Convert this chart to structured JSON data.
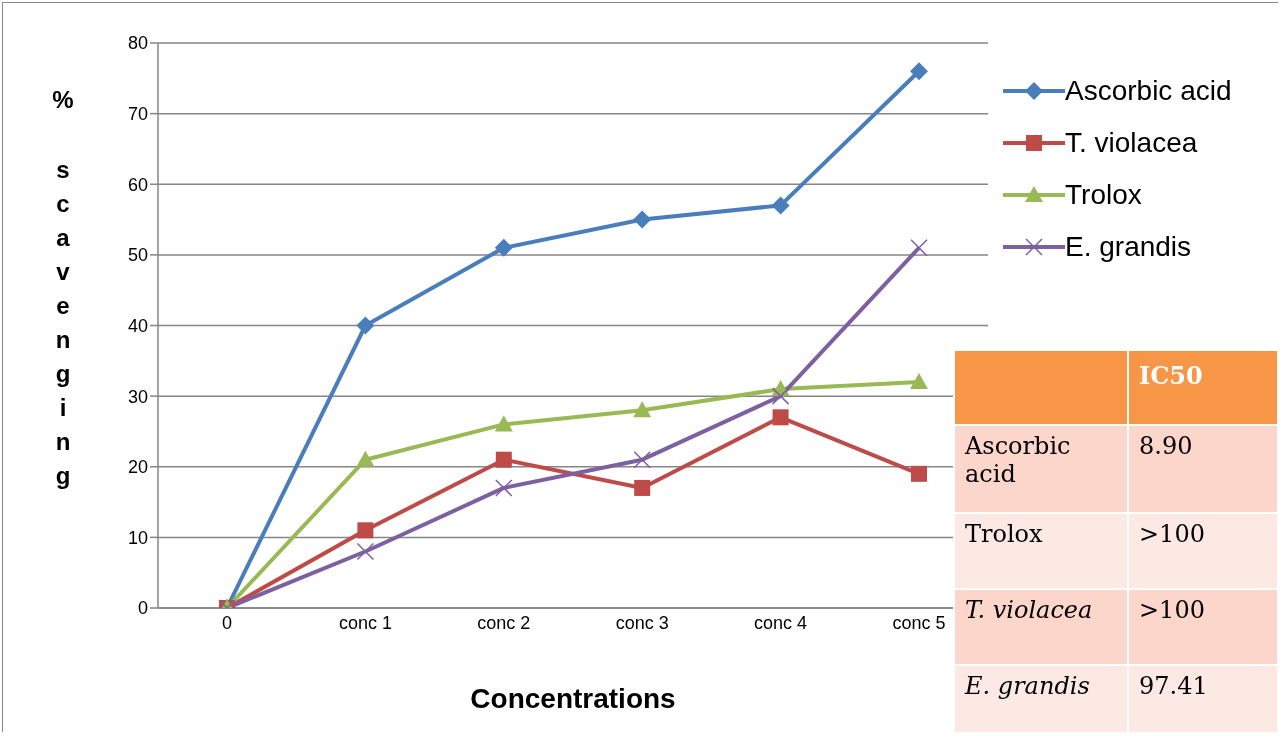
{
  "chart_data": {
    "type": "line",
    "xlabel": "Concentrations",
    "ylabel": "% scavenging",
    "categories": [
      "0",
      "conc 1",
      "conc 2",
      "conc 3",
      "conc 4",
      "conc 5"
    ],
    "series": [
      {
        "name": "Ascorbic acid",
        "color": "#4a7ebb",
        "marker": "diamond",
        "values": [
          0,
          40,
          51,
          55,
          57,
          76
        ]
      },
      {
        "name": "T. violacea",
        "color": "#be4b48",
        "marker": "square",
        "values": [
          0,
          11,
          21,
          17,
          27,
          19
        ]
      },
      {
        "name": "Trolox",
        "color": "#98b954",
        "marker": "triangle",
        "values": [
          0,
          21,
          26,
          28,
          31,
          32
        ]
      },
      {
        "name": "E. grandis",
        "color": "#7d60a0",
        "marker": "cross",
        "values": [
          0,
          8,
          17,
          21,
          30,
          51
        ]
      }
    ],
    "ylim": [
      0,
      80
    ],
    "yticks": [
      0,
      10,
      20,
      30,
      40,
      50,
      60,
      70,
      80
    ],
    "grid": "y",
    "legend": "top right",
    "annotations": [
      "IC50",
      "Ascorbic acid",
      "8.90",
      "Trolox",
      ">100",
      "T. violacea",
      ">100",
      "E. grandis",
      "97.41"
    ]
  }
}
